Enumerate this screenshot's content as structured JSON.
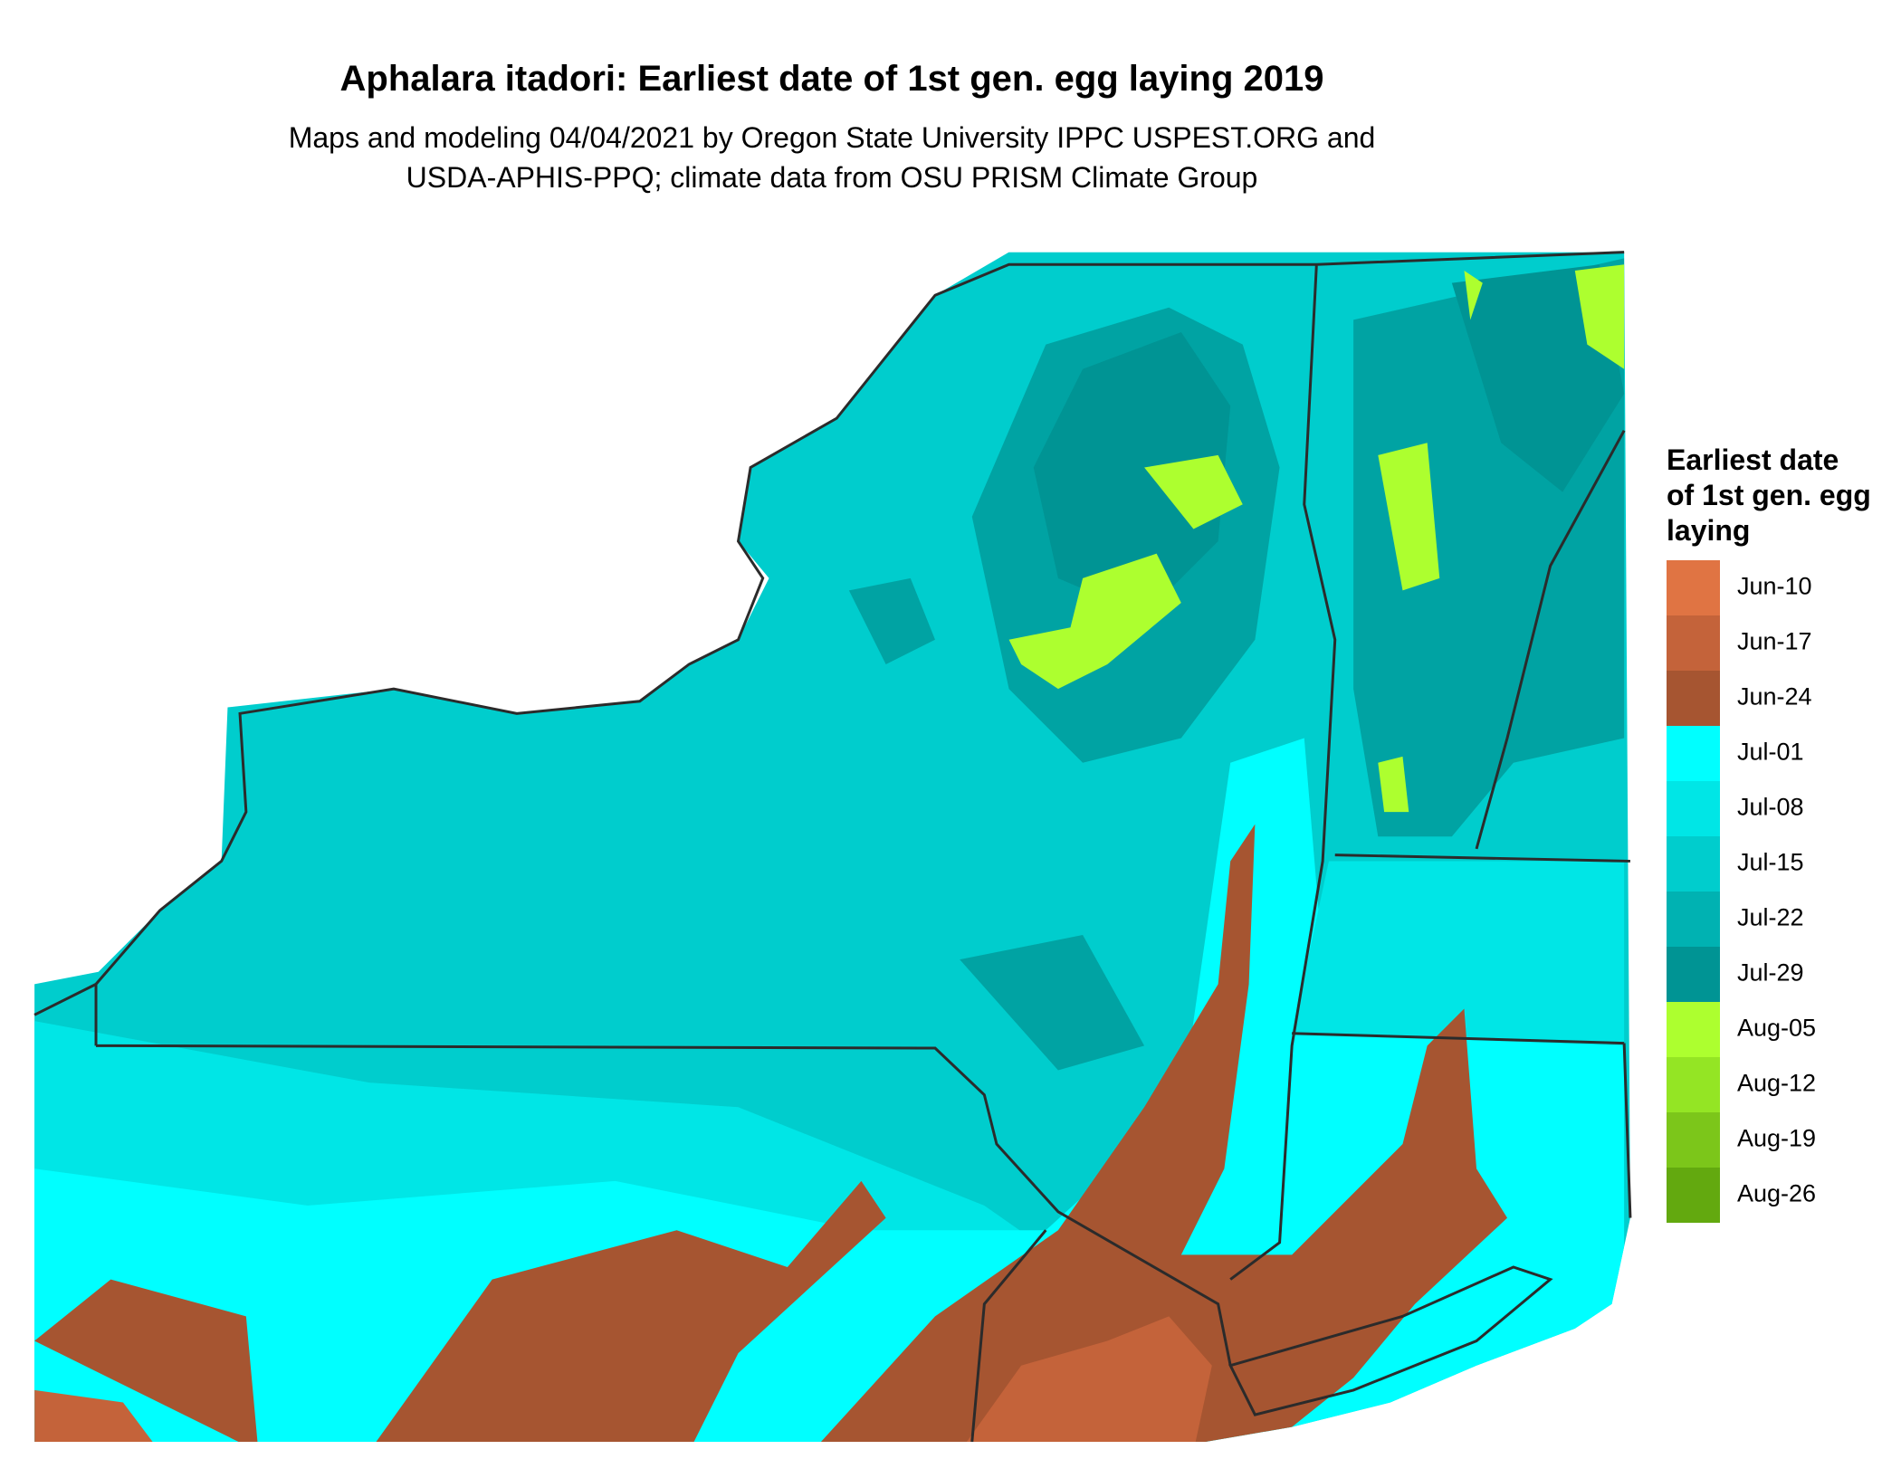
{
  "title": "Aphalara itadori: Earliest date of 1st gen. egg laying 2019",
  "subtitle": [
    "Maps and modeling 04/04/2021 by Oregon State University IPPC USPEST.ORG and",
    "USDA-APHIS-PPQ; climate data from OSU PRISM Climate Group"
  ],
  "legend": {
    "title": [
      "Earliest date",
      "of 1st gen. egg",
      "laying"
    ],
    "items": [
      {
        "label": "Jun-10",
        "color": "#e07443"
      },
      {
        "label": "Jun-17",
        "color": "#c4633a"
      },
      {
        "label": "Jun-24",
        "color": "#a65531"
      },
      {
        "label": "Jul-01",
        "color": "#00ffff"
      },
      {
        "label": "Jul-08",
        "color": "#00e6e6"
      },
      {
        "label": "Jul-15",
        "color": "#00cdcd"
      },
      {
        "label": "Jul-22",
        "color": "#00b2b2"
      },
      {
        "label": "Jul-29",
        "color": "#009494"
      },
      {
        "label": "Aug-05",
        "color": "#adff2f"
      },
      {
        "label": "Aug-12",
        "color": "#94e524"
      },
      {
        "label": "Aug-19",
        "color": "#7cc61a"
      },
      {
        "label": "Aug-26",
        "color": "#63a90f"
      }
    ]
  }
}
